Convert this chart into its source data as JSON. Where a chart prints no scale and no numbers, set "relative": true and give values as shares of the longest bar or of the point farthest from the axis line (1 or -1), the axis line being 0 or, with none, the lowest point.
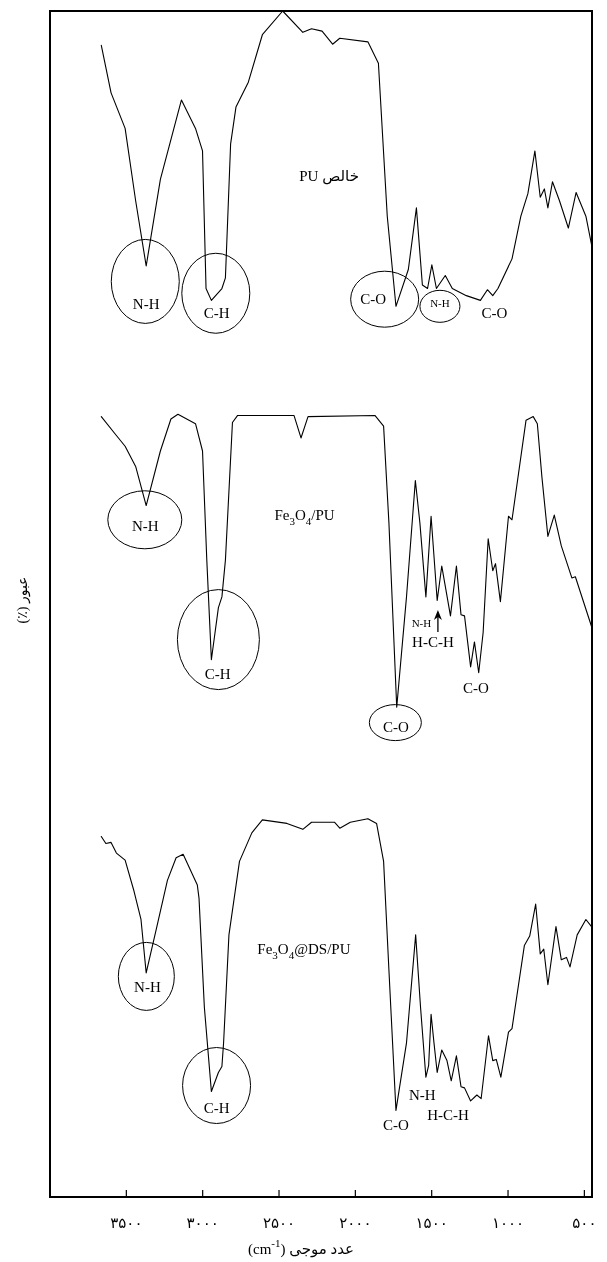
{
  "chart_data": {
    "type": "line",
    "relative": true,
    "xlabel": "عدد موجی (cm$^{-1}$)",
    "ylabel": "عبور (٪)",
    "xlim": [
      4000,
      450
    ],
    "xticks": [
      {
        "value": 3500,
        "label": "۳۵۰۰"
      },
      {
        "value": 3000,
        "label": "۳۰۰۰"
      },
      {
        "value": 2500,
        "label": "۲۵۰۰"
      },
      {
        "value": 2000,
        "label": "۲۰۰۰"
      },
      {
        "value": 1500,
        "label": "۱۵۰۰"
      },
      {
        "value": 1000,
        "label": "۱۰۰۰"
      },
      {
        "value": 500,
        "label": "۵۰۰"
      }
    ],
    "series": [
      {
        "color": "#000000",
        "x": [
          3664,
          3600,
          3508,
          3439,
          3370,
          3277,
          3139,
          3047,
          3001,
          2978,
          2943,
          2874,
          2851,
          2817,
          2782,
          2701,
          2609,
          2476,
          2344,
          2287,
          2218,
          2149,
          2102,
          1918,
          1849,
          1791,
          1734,
          1653,
          1600,
          1561,
          1527,
          1499,
          1469,
          1411,
          1365,
          1273,
          1181,
          1135,
          1100,
          1066,
          974,
          916,
          870,
          824,
          789,
          762,
          739,
          709,
          663,
          605,
          554,
          490,
          453
        ],
        "values": [
          0.971,
          0.931,
          0.901,
          0.84,
          0.785,
          0.858,
          0.925,
          0.901,
          0.882,
          0.766,
          0.756,
          0.766,
          0.775,
          0.888,
          0.919,
          0.94,
          0.98,
          1.0,
          0.982,
          0.985,
          0.983,
          0.972,
          0.977,
          0.974,
          0.956,
          0.827,
          0.751,
          0.782,
          0.834,
          0.769,
          0.766,
          0.786,
          0.766,
          0.777,
          0.766,
          0.76,
          0.756,
          0.765,
          0.76,
          0.766,
          0.791,
          0.827,
          0.846,
          0.882,
          0.843,
          0.85,
          0.834,
          0.856,
          0.84,
          0.817,
          0.847,
          0.827,
          0.803
        ]
      },
      {
        "color": "#000000",
        "x": [
          3664,
          3577,
          3508,
          3439,
          3370,
          3277,
          3208,
          3162,
          3047,
          3001,
          2973,
          2943,
          2897,
          2874,
          2851,
          2805,
          2771,
          2402,
          2356,
          2310,
          1872,
          1815,
          1780,
          1729,
          1665,
          1607,
          1577,
          1538,
          1504,
          1464,
          1434,
          1377,
          1338,
          1308,
          1285,
          1245,
          1220,
          1192,
          1163,
          1130,
          1100,
          1082,
          1050,
          997,
          974,
          882,
          835,
          808,
          778,
          739,
          697,
          651,
          582,
          559,
          453
        ],
        "values": [
          0.658,
          0.644,
          0.633,
          0.616,
          0.583,
          0.629,
          0.656,
          0.66,
          0.652,
          0.629,
          0.537,
          0.453,
          0.497,
          0.506,
          0.537,
          0.653,
          0.659,
          0.659,
          0.64,
          0.658,
          0.659,
          0.65,
          0.568,
          0.413,
          0.506,
          0.604,
          0.568,
          0.506,
          0.574,
          0.503,
          0.532,
          0.49,
          0.532,
          0.491,
          0.49,
          0.447,
          0.468,
          0.442,
          0.476,
          0.555,
          0.528,
          0.534,
          0.502,
          0.574,
          0.571,
          0.655,
          0.658,
          0.652,
          0.607,
          0.557,
          0.575,
          0.549,
          0.522,
          0.523,
          0.481
        ]
      },
      {
        "color": "#000000",
        "x": [
          3664,
          3634,
          3600,
          3565,
          3508,
          3450,
          3404,
          3370,
          3300,
          3231,
          3174,
          3128,
          3035,
          3024,
          2989,
          2943,
          2897,
          2874,
          2863,
          2828,
          2759,
          2678,
          2609,
          2448,
          2344,
          2287,
          2137,
          2102,
          2033,
          1918,
          1861,
          1815,
          1780,
          1734,
          1665,
          1605,
          1573,
          1538,
          1520,
          1504,
          1485,
          1464,
          1434,
          1400,
          1372,
          1338,
          1308,
          1285,
          1245,
          1204,
          1176,
          1128,
          1100,
          1077,
          1047,
          997,
          974,
          893,
          858,
          819,
          789,
          766,
          739,
          686,
          651,
          617,
          594,
          547,
          490,
          453
        ],
        "values": [
          0.304,
          0.298,
          0.299,
          0.29,
          0.284,
          0.258,
          0.234,
          0.189,
          0.228,
          0.267,
          0.286,
          0.289,
          0.263,
          0.252,
          0.16,
          0.089,
          0.105,
          0.11,
          0.13,
          0.221,
          0.283,
          0.307,
          0.318,
          0.315,
          0.31,
          0.316,
          0.316,
          0.311,
          0.316,
          0.319,
          0.315,
          0.283,
          0.191,
          0.073,
          0.13,
          0.221,
          0.16,
          0.101,
          0.111,
          0.154,
          0.13,
          0.105,
          0.124,
          0.115,
          0.098,
          0.119,
          0.093,
          0.092,
          0.081,
          0.086,
          0.083,
          0.136,
          0.115,
          0.116,
          0.101,
          0.139,
          0.142,
          0.212,
          0.22,
          0.247,
          0.205,
          0.209,
          0.179,
          0.228,
          0.2,
          0.202,
          0.194,
          0.221,
          0.234,
          0.228
        ]
      }
    ],
    "annotations": [
      "PU خالص",
      "N-H",
      "C-H",
      "C-O",
      "N-H",
      "C-O",
      "Fe$_{3}$O$_{4}$/PU",
      "N-H",
      "C-H",
      "C-O",
      "N-H",
      "H-C-H",
      "C-O",
      "Fe$_{3}$O$_{4}$@DS/PU",
      "N-H",
      "C-H",
      "N-H",
      "H-C-H",
      "C-O"
    ]
  }
}
